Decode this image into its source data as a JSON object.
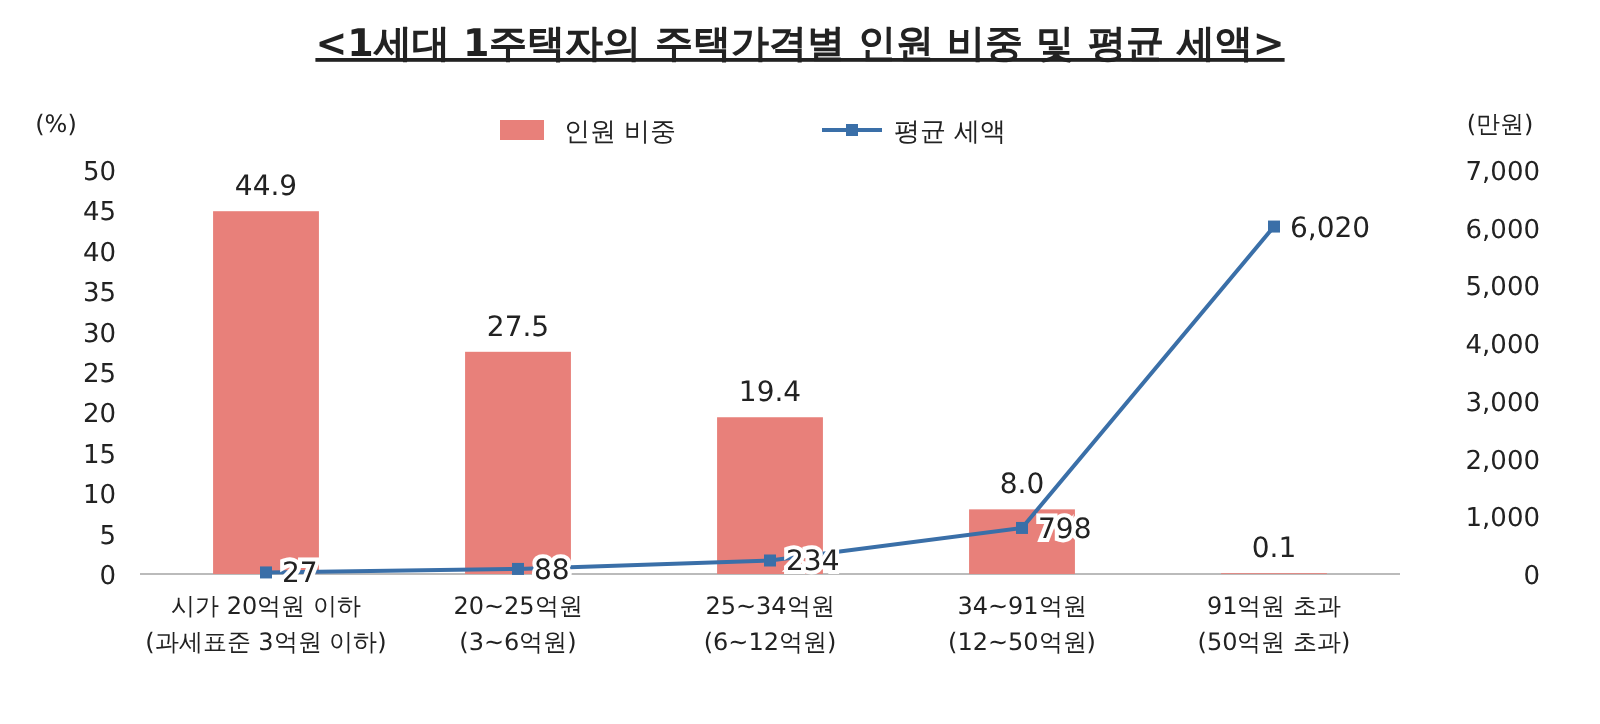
{
  "chart_data": {
    "type": "bar",
    "title": "<1세대 1주택자의 주택가격별 인원 비중 및 평균 세액>",
    "ylabel": "(%)",
    "y2label": "(만원)",
    "categories": [
      "시가 20억원 이하\n(과세표준 3억원 이하)",
      "20~25억원\n(3~6억원)",
      "25~34억원\n(6~12억원)",
      "34~91억원\n(12~50억원)",
      "91억원 초과\n(50억원 초과)"
    ],
    "series": [
      {
        "name": "인원 비중",
        "color": "#e8807a",
        "values": [
          44.9,
          27.5,
          19.4,
          8.0,
          0.1
        ],
        "value_labels": [
          "44.9",
          "27.5",
          "19.4",
          "8.0",
          "0.1"
        ]
      },
      {
        "name": "평균 세액",
        "type": "line",
        "axis": "y2",
        "color": "#3a6fa8",
        "marker": "square",
        "values": [
          27,
          88,
          234,
          798,
          6020
        ],
        "value_labels": [
          "27",
          "88",
          "234",
          "798",
          "6,020"
        ]
      }
    ],
    "ylim": [
      0,
      50
    ],
    "yticks": [
      0,
      5,
      10,
      15,
      20,
      25,
      30,
      35,
      40,
      45,
      50
    ],
    "y2lim": [
      0,
      7000
    ],
    "y2ticks": [
      0,
      {
        "value": 1000,
        "label": "1,000"
      },
      {
        "value": 2000,
        "label": "2,000"
      },
      {
        "value": 3000,
        "label": "3,000"
      },
      {
        "value": 4000,
        "label": "4,000"
      },
      {
        "value": 5000,
        "label": "5,000"
      },
      {
        "value": 6000,
        "label": "6,000"
      },
      {
        "value": 7000,
        "label": "7,000"
      }
    ],
    "legend": "top",
    "grid": false
  }
}
